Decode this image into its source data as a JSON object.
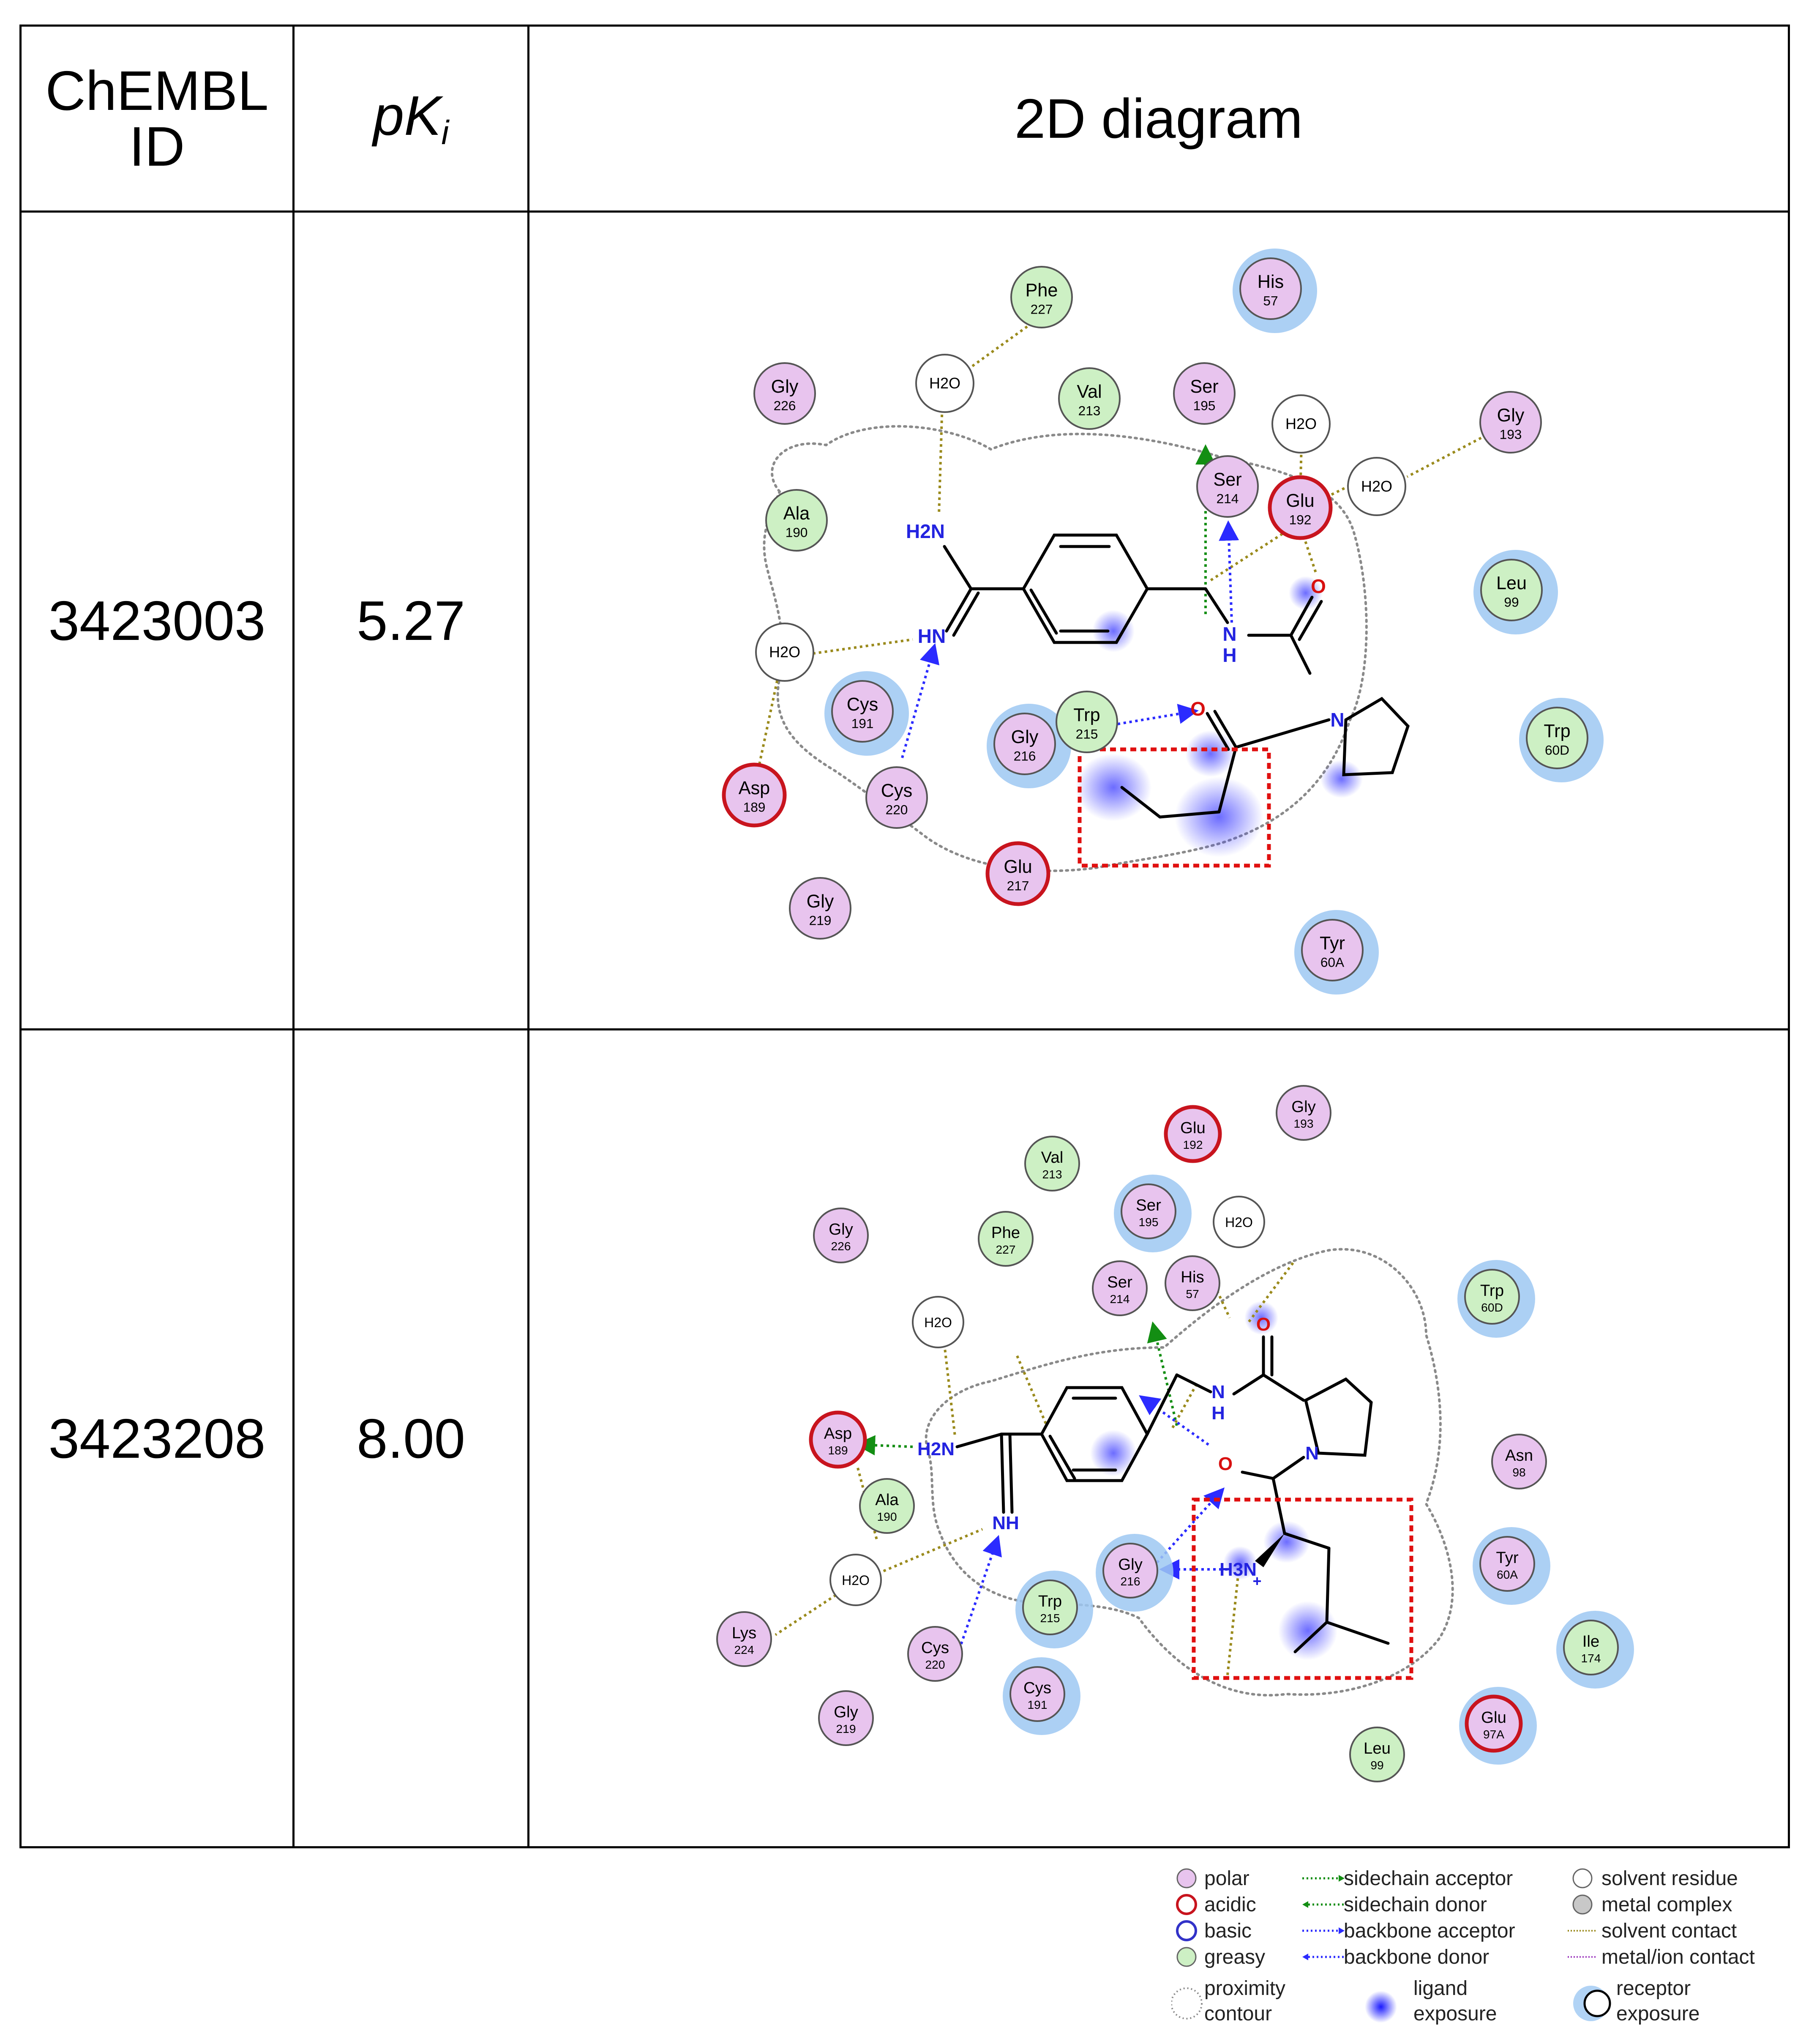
{
  "table": {
    "headers": {
      "id": "ChEMBL ID",
      "id_line1": "ChEMBL",
      "id_line2": "ID",
      "pk_main": "pK",
      "pk_sub": "i",
      "diagram": "2D diagram"
    },
    "rows": [
      {
        "chembl_id": "3423003",
        "pki": "5.27",
        "residues": [
          {
            "name": "Phe",
            "num": "227",
            "type": "greasy"
          },
          {
            "name": "His",
            "num": "57",
            "type": "polar"
          },
          {
            "name": "Gly",
            "num": "226",
            "type": "polar"
          },
          {
            "name": "Val",
            "num": "213",
            "type": "greasy"
          },
          {
            "name": "Ser",
            "num": "195",
            "type": "polar"
          },
          {
            "name": "Gly",
            "num": "193",
            "type": "polar"
          },
          {
            "name": "Ala",
            "num": "190",
            "type": "greasy"
          },
          {
            "name": "Ser",
            "num": "214",
            "type": "polar"
          },
          {
            "name": "Glu",
            "num": "192",
            "type": "acidic"
          },
          {
            "name": "Leu",
            "num": "99",
            "type": "greasy"
          },
          {
            "name": "Cys",
            "num": "191",
            "type": "polar"
          },
          {
            "name": "Trp",
            "num": "215",
            "type": "greasy"
          },
          {
            "name": "Gly",
            "num": "216",
            "type": "polar"
          },
          {
            "name": "Trp",
            "num": "60D",
            "type": "greasy"
          },
          {
            "name": "Asp",
            "num": "189",
            "type": "acidic"
          },
          {
            "name": "Cys",
            "num": "220",
            "type": "polar"
          },
          {
            "name": "Glu",
            "num": "217",
            "type": "acidic"
          },
          {
            "name": "Gly",
            "num": "219",
            "type": "polar"
          },
          {
            "name": "Tyr",
            "num": "60A",
            "type": "polar"
          }
        ],
        "waters": [
          "H2O",
          "H2O",
          "H2O",
          "H2O"
        ],
        "atoms": {
          "h2n": "H2N",
          "hn": "HN",
          "n_amide": "N",
          "h_amide": "H",
          "o1": "O",
          "o2": "O",
          "n_pro": "N"
        }
      },
      {
        "chembl_id": "3423208",
        "pki": "8.00",
        "residues": [
          {
            "name": "Gly",
            "num": "193",
            "type": "polar"
          },
          {
            "name": "Glu",
            "num": "192",
            "type": "acidic"
          },
          {
            "name": "Val",
            "num": "213",
            "type": "greasy"
          },
          {
            "name": "Ser",
            "num": "195",
            "type": "polar"
          },
          {
            "name": "Gly",
            "num": "226",
            "type": "polar"
          },
          {
            "name": "Phe",
            "num": "227",
            "type": "greasy"
          },
          {
            "name": "Ser",
            "num": "214",
            "type": "polar"
          },
          {
            "name": "His",
            "num": "57",
            "type": "polar"
          },
          {
            "name": "Trp",
            "num": "60D",
            "type": "greasy"
          },
          {
            "name": "Asp",
            "num": "189",
            "type": "acidic"
          },
          {
            "name": "Asn",
            "num": "98",
            "type": "polar"
          },
          {
            "name": "Ala",
            "num": "190",
            "type": "greasy"
          },
          {
            "name": "Gly",
            "num": "216",
            "type": "polar"
          },
          {
            "name": "Tyr",
            "num": "60A",
            "type": "polar"
          },
          {
            "name": "Trp",
            "num": "215",
            "type": "greasy"
          },
          {
            "name": "Lys",
            "num": "224",
            "type": "polar"
          },
          {
            "name": "Cys",
            "num": "220",
            "type": "polar"
          },
          {
            "name": "Ile",
            "num": "174",
            "type": "greasy"
          },
          {
            "name": "Cys",
            "num": "191",
            "type": "polar"
          },
          {
            "name": "Gly",
            "num": "219",
            "type": "polar"
          },
          {
            "name": "Glu",
            "num": "97A",
            "type": "acidic"
          },
          {
            "name": "Leu",
            "num": "99",
            "type": "greasy"
          }
        ],
        "waters": [
          "H2O",
          "H2O",
          "H2O"
        ],
        "atoms": {
          "h2n": "H2N",
          "nh": "NH",
          "n_amide": "N",
          "h_amide": "H",
          "o1": "O",
          "o2": "O",
          "n_pro": "N",
          "h3n": "H3N",
          "plus": "+"
        }
      }
    ]
  },
  "legend": {
    "col1": [
      "polar",
      "acidic",
      "basic",
      "greasy"
    ],
    "col2": [
      "sidechain acceptor",
      "sidechain donor",
      "backbone acceptor",
      "backbone donor"
    ],
    "col3": [
      "solvent residue",
      "metal complex",
      "solvent contact",
      "metal/ion contact"
    ],
    "proximity": [
      "proximity",
      "contour"
    ],
    "ligand_exposure": [
      "ligand",
      "exposure"
    ],
    "receptor_exposure": [
      "receptor",
      "exposure"
    ]
  },
  "colors": {
    "polar": "#e8c4ee",
    "acidic_border": "#c8141e",
    "greasy": "#cdf0c4",
    "basic_border": "#3232c8",
    "ligand_blue": "#1a1aff",
    "hbond_green": "#138e13",
    "solvent_line": "#9a8a1c",
    "highlight_box": "#e01010",
    "contour": "#8a8a8a"
  }
}
